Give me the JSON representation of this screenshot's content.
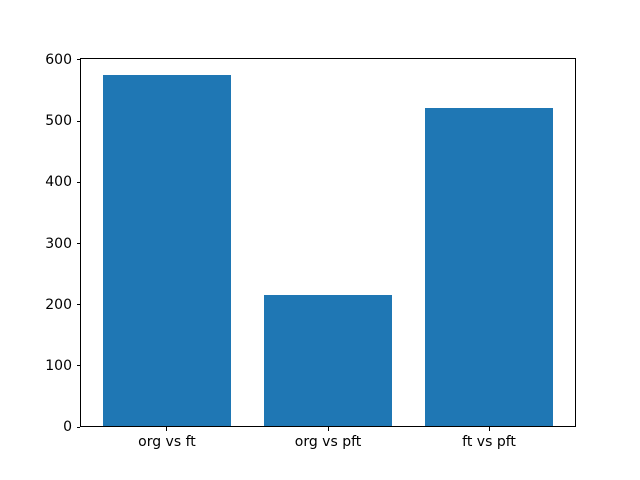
{
  "chart_data": {
    "type": "bar",
    "title": "",
    "categories": [
      "org vs ft",
      "org vs pft",
      "ft vs pft"
    ],
    "values": [
      575,
      216,
      521
    ],
    "xlabel": "",
    "ylabel": "",
    "ylim": [
      0,
      603.75
    ],
    "yticks": [
      0,
      100,
      200,
      300,
      400,
      500,
      600
    ],
    "bar_width_fraction": 0.8,
    "bar_color": "#1f77b4",
    "axis_color": "#000000",
    "background_color": "#ffffff",
    "grid": false,
    "legend": "none"
  }
}
